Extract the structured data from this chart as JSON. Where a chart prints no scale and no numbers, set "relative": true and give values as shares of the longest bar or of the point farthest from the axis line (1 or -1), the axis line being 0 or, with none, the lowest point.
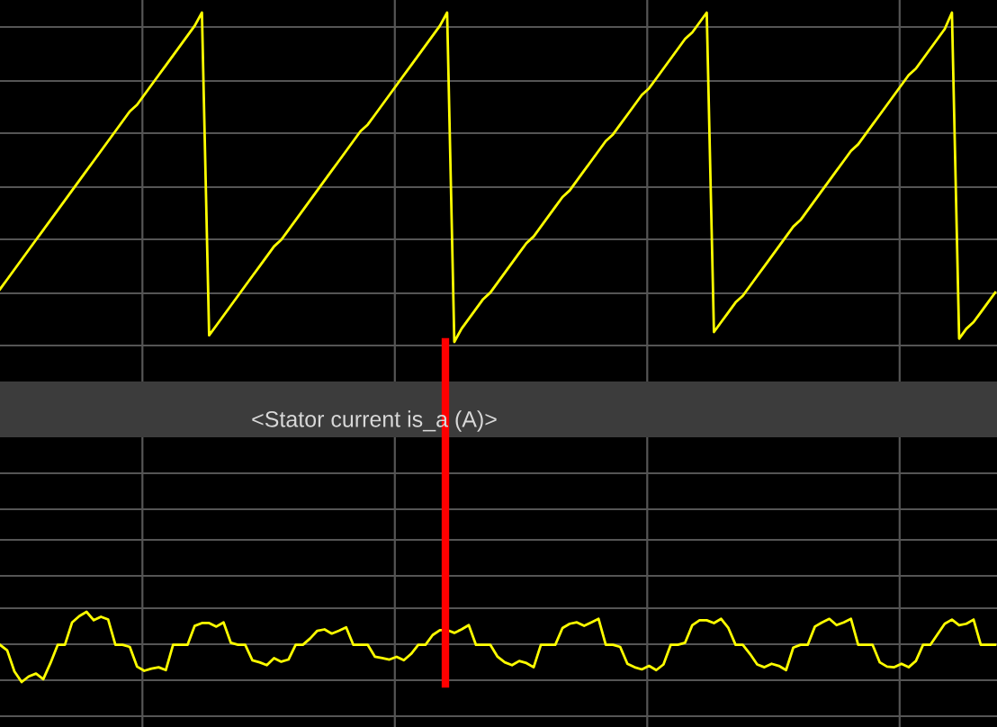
{
  "chart_data": [
    {
      "type": "line",
      "relative": true,
      "grid": true,
      "legend": false,
      "marker": "none",
      "line_style": "solid",
      "categories": [
        null,
        null,
        null,
        null,
        null,
        null,
        null,
        null,
        null,
        null,
        null,
        null,
        null,
        null,
        null,
        null,
        null,
        null,
        null,
        null,
        null,
        null,
        null,
        null,
        null,
        null,
        null,
        null,
        null,
        null,
        null,
        null,
        null,
        null,
        null,
        null,
        null,
        null,
        null,
        null,
        null,
        null,
        null,
        null,
        null,
        null,
        null,
        null,
        null,
        null,
        null,
        null,
        null,
        null,
        null,
        null,
        null,
        null,
        null,
        null,
        null,
        null,
        null,
        null,
        null,
        null,
        null,
        null,
        null,
        null,
        null,
        null,
        null,
        null,
        null,
        null,
        null,
        null,
        null,
        null,
        null,
        null,
        null,
        null,
        null,
        null,
        null,
        null,
        null,
        null,
        null,
        null,
        null,
        null,
        null,
        null,
        null,
        null,
        null,
        null,
        null,
        null,
        null,
        null,
        null,
        null,
        null,
        null,
        null,
        null,
        null,
        null,
        null,
        null,
        null,
        null,
        null,
        null,
        null,
        null,
        null,
        null,
        null,
        null,
        null,
        null,
        null,
        null,
        null,
        null,
        null,
        null,
        null,
        null,
        null,
        null,
        null,
        null,
        null
      ],
      "series": [
        {
          "color": "#ffff00",
          "values": [
            0.16,
            0.19,
            0.22,
            0.25,
            0.28,
            0.31,
            0.34,
            0.37,
            0.4,
            0.43,
            0.46,
            0.49,
            0.52,
            0.55,
            0.58,
            0.61,
            0.64,
            0.67,
            0.7,
            0.72,
            0.75,
            0.78,
            0.81,
            0.84,
            0.87,
            0.9,
            0.93,
            0.96,
            1.0,
            0.02,
            0.05,
            0.08,
            0.11,
            0.14,
            0.17,
            0.2,
            0.23,
            0.26,
            0.29,
            0.31,
            0.34,
            0.37,
            0.4,
            0.43,
            0.46,
            0.49,
            0.52,
            0.55,
            0.58,
            0.61,
            0.64,
            0.66,
            0.69,
            0.72,
            0.75,
            0.78,
            0.81,
            0.84,
            0.87,
            0.9,
            0.93,
            0.96,
            1.0,
            0.0,
            0.04,
            0.07,
            0.1,
            0.13,
            0.15,
            0.18,
            0.21,
            0.24,
            0.27,
            0.3,
            0.32,
            0.35,
            0.38,
            0.41,
            0.44,
            0.46,
            0.49,
            0.52,
            0.55,
            0.58,
            0.61,
            0.63,
            0.66,
            0.69,
            0.72,
            0.75,
            0.77,
            0.8,
            0.83,
            0.86,
            0.89,
            0.92,
            0.94,
            0.97,
            1.0,
            0.03,
            0.06,
            0.09,
            0.12,
            0.14,
            0.17,
            0.2,
            0.23,
            0.26,
            0.29,
            0.32,
            0.35,
            0.37,
            0.4,
            0.43,
            0.46,
            0.49,
            0.52,
            0.55,
            0.58,
            0.6,
            0.63,
            0.66,
            0.69,
            0.72,
            0.75,
            0.78,
            0.81,
            0.83,
            0.86,
            0.89,
            0.92,
            0.95,
            1.0,
            0.01,
            0.04,
            0.06,
            0.09,
            0.12,
            0.15
          ]
        }
      ]
    },
    {
      "type": "line",
      "relative": true,
      "grid": true,
      "legend": false,
      "marker": "none",
      "line_style": "solid",
      "title": "<Stator current is_a (A)>",
      "categories": [
        null,
        null,
        null,
        null,
        null,
        null,
        null,
        null,
        null,
        null,
        null,
        null,
        null,
        null,
        null,
        null,
        null,
        null,
        null,
        null,
        null,
        null,
        null,
        null,
        null,
        null,
        null,
        null,
        null,
        null,
        null,
        null,
        null,
        null,
        null,
        null,
        null,
        null,
        null,
        null,
        null,
        null,
        null,
        null,
        null,
        null,
        null,
        null,
        null,
        null,
        null,
        null,
        null,
        null,
        null,
        null,
        null,
        null,
        null,
        null,
        null,
        null,
        null,
        null,
        null,
        null,
        null,
        null,
        null,
        null,
        null,
        null,
        null,
        null,
        null,
        null,
        null,
        null,
        null,
        null,
        null,
        null,
        null,
        null,
        null,
        null,
        null,
        null,
        null,
        null,
        null,
        null,
        null,
        null,
        null,
        null,
        null,
        null,
        null,
        null,
        null,
        null,
        null,
        null,
        null,
        null,
        null,
        null,
        null,
        null,
        null,
        null,
        null,
        null,
        null,
        null,
        null,
        null,
        null,
        null,
        null,
        null,
        null,
        null,
        null,
        null,
        null,
        null,
        null,
        null,
        null,
        null,
        null,
        null,
        null,
        null,
        null,
        null,
        null
      ],
      "series": [
        {
          "color": "#ffff00",
          "values": [
            0.53,
            0.45,
            0.15,
            0.0,
            0.08,
            0.12,
            0.04,
            0.27,
            0.53,
            0.53,
            0.85,
            0.94,
            1.0,
            0.88,
            0.93,
            0.89,
            0.53,
            0.53,
            0.5,
            0.22,
            0.16,
            0.19,
            0.21,
            0.17,
            0.53,
            0.53,
            0.53,
            0.8,
            0.84,
            0.84,
            0.79,
            0.85,
            0.56,
            0.53,
            0.53,
            0.31,
            0.28,
            0.24,
            0.34,
            0.29,
            0.32,
            0.53,
            0.53,
            0.62,
            0.73,
            0.75,
            0.69,
            0.73,
            0.78,
            0.53,
            0.53,
            0.53,
            0.36,
            0.34,
            0.32,
            0.36,
            0.31,
            0.4,
            0.53,
            0.53,
            0.67,
            0.74,
            0.74,
            0.7,
            0.75,
            0.81,
            0.53,
            0.53,
            0.53,
            0.36,
            0.28,
            0.24,
            0.3,
            0.27,
            0.21,
            0.53,
            0.53,
            0.53,
            0.77,
            0.83,
            0.85,
            0.8,
            0.85,
            0.9,
            0.53,
            0.53,
            0.5,
            0.26,
            0.21,
            0.18,
            0.23,
            0.17,
            0.25,
            0.53,
            0.53,
            0.56,
            0.81,
            0.88,
            0.88,
            0.84,
            0.9,
            0.77,
            0.53,
            0.53,
            0.4,
            0.25,
            0.21,
            0.26,
            0.23,
            0.17,
            0.49,
            0.53,
            0.53,
            0.79,
            0.85,
            0.9,
            0.81,
            0.85,
            0.9,
            0.53,
            0.53,
            0.53,
            0.28,
            0.22,
            0.21,
            0.26,
            0.21,
            0.3,
            0.53,
            0.53,
            0.68,
            0.83,
            0.89,
            0.81,
            0.83,
            0.89,
            0.53,
            0.53,
            0.53
          ]
        }
      ]
    }
  ]
}
